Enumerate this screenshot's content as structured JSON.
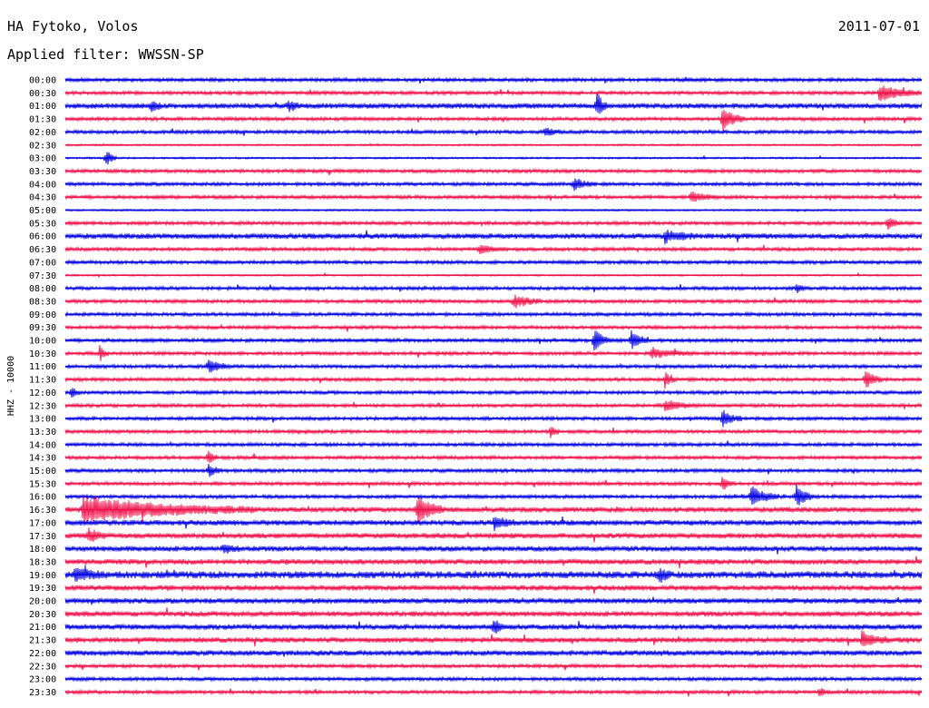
{
  "header": {
    "station": "HA Fytoko, Volos",
    "date": "2011-07-01",
    "filter": "Applied filter: WWSSN-SP"
  },
  "colors": {
    "blue": "#0000e0",
    "red": "#f0104a"
  },
  "chart_data": {
    "type": "line",
    "title": "HA Fytoko, Volos",
    "subtitle": "Applied filter: WWSSN-SP",
    "date": "2011-07-01",
    "ylabel": "HHZ - 10000",
    "xlabel": "",
    "row_labels": [
      "00:00",
      "00:30",
      "01:00",
      "01:30",
      "02:00",
      "02:30",
      "03:00",
      "03:30",
      "04:00",
      "04:30",
      "05:00",
      "05:30",
      "06:00",
      "06:30",
      "07:00",
      "07:30",
      "08:00",
      "08:30",
      "09:00",
      "09:30",
      "10:00",
      "10:30",
      "11:00",
      "11:30",
      "12:00",
      "12:30",
      "13:00",
      "13:30",
      "14:00",
      "14:30",
      "15:00",
      "15:30",
      "16:00",
      "16:30",
      "17:00",
      "17:30",
      "18:00",
      "18:30",
      "19:00",
      "19:30",
      "20:00",
      "20:30",
      "21:00",
      "21:30",
      "22:00",
      "22:30",
      "23:00",
      "23:30"
    ],
    "row_minutes": 30,
    "series_colors": [
      "blue",
      "red"
    ],
    "noise_amplitude": [
      2,
      2,
      3,
      2,
      2,
      1,
      1,
      2,
      2,
      2,
      1,
      2,
      3,
      2,
      2,
      1,
      2,
      2,
      2,
      2,
      2,
      2,
      2,
      2,
      2,
      2,
      2,
      2,
      2,
      2,
      2,
      2,
      2,
      3,
      3,
      3,
      3,
      3,
      4,
      3,
      3,
      3,
      3,
      3,
      3,
      2,
      2,
      2
    ],
    "events": [
      {
        "row": 1,
        "minute": 28.5,
        "amp": 10,
        "dur": 1.5
      },
      {
        "row": 2,
        "minute": 3.0,
        "amp": 8,
        "dur": 0.4
      },
      {
        "row": 2,
        "minute": 7.8,
        "amp": 6,
        "dur": 0.5
      },
      {
        "row": 2,
        "minute": 18.6,
        "amp": 16,
        "dur": 0.4
      },
      {
        "row": 3,
        "minute": 23.0,
        "amp": 14,
        "dur": 0.8
      },
      {
        "row": 4,
        "minute": 16.8,
        "amp": 6,
        "dur": 0.6
      },
      {
        "row": 6,
        "minute": 1.4,
        "amp": 12,
        "dur": 0.4
      },
      {
        "row": 8,
        "minute": 17.8,
        "amp": 7,
        "dur": 0.8
      },
      {
        "row": 9,
        "minute": 21.9,
        "amp": 6,
        "dur": 1.0
      },
      {
        "row": 11,
        "minute": 28.8,
        "amp": 8,
        "dur": 0.5
      },
      {
        "row": 12,
        "minute": 21.0,
        "amp": 7,
        "dur": 1.2
      },
      {
        "row": 13,
        "minute": 14.5,
        "amp": 5,
        "dur": 1.0
      },
      {
        "row": 16,
        "minute": 25.6,
        "amp": 7,
        "dur": 0.3
      },
      {
        "row": 17,
        "minute": 15.7,
        "amp": 8,
        "dur": 1.0
      },
      {
        "row": 20,
        "minute": 18.5,
        "amp": 14,
        "dur": 0.6
      },
      {
        "row": 20,
        "minute": 19.8,
        "amp": 12,
        "dur": 0.6
      },
      {
        "row": 21,
        "minute": 1.2,
        "amp": 10,
        "dur": 0.3
      },
      {
        "row": 21,
        "minute": 20.5,
        "amp": 6,
        "dur": 1.5
      },
      {
        "row": 22,
        "minute": 5.0,
        "amp": 8,
        "dur": 0.8
      },
      {
        "row": 23,
        "minute": 21.0,
        "amp": 10,
        "dur": 0.4
      },
      {
        "row": 23,
        "minute": 28.0,
        "amp": 12,
        "dur": 0.6
      },
      {
        "row": 24,
        "minute": 0.2,
        "amp": 8,
        "dur": 0.3
      },
      {
        "row": 25,
        "minute": 21.0,
        "amp": 6,
        "dur": 1.2
      },
      {
        "row": 26,
        "minute": 23.0,
        "amp": 10,
        "dur": 0.7
      },
      {
        "row": 27,
        "minute": 17.0,
        "amp": 8,
        "dur": 0.3
      },
      {
        "row": 29,
        "minute": 5.0,
        "amp": 10,
        "dur": 0.3
      },
      {
        "row": 30,
        "minute": 5.0,
        "amp": 8,
        "dur": 0.5
      },
      {
        "row": 31,
        "minute": 23.0,
        "amp": 9,
        "dur": 0.4
      },
      {
        "row": 32,
        "minute": 24.0,
        "amp": 12,
        "dur": 1.0
      },
      {
        "row": 32,
        "minute": 25.6,
        "amp": 14,
        "dur": 0.6
      },
      {
        "row": 33,
        "minute": 0.6,
        "amp": 14,
        "dur": 6.0
      },
      {
        "row": 33,
        "minute": 12.3,
        "amp": 16,
        "dur": 1.0
      },
      {
        "row": 34,
        "minute": 15.0,
        "amp": 7,
        "dur": 0.8
      },
      {
        "row": 35,
        "minute": 0.8,
        "amp": 9,
        "dur": 0.6
      },
      {
        "row": 36,
        "minute": 5.5,
        "amp": 7,
        "dur": 0.6
      },
      {
        "row": 38,
        "minute": 0.3,
        "amp": 8,
        "dur": 1.0
      },
      {
        "row": 38,
        "minute": 20.8,
        "amp": 10,
        "dur": 0.4
      },
      {
        "row": 42,
        "minute": 15.0,
        "amp": 10,
        "dur": 0.4
      },
      {
        "row": 43,
        "minute": 27.9,
        "amp": 8,
        "dur": 1.0
      },
      {
        "row": 47,
        "minute": 26.4,
        "amp": 6,
        "dur": 0.4
      }
    ]
  }
}
